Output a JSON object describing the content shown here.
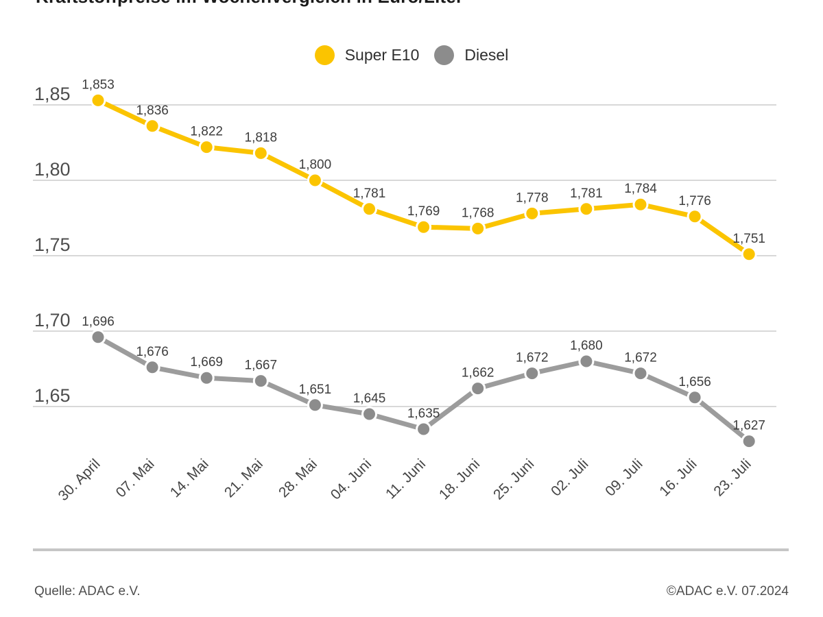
{
  "title": "Kraftstoffpreise im Wochenvergleich in Euro/Liter",
  "footer": {
    "source": "Quelle: ADAC e.V.",
    "copyright": "©ADAC e.V. 07.2024"
  },
  "chart_data": {
    "type": "line",
    "title": "Kraftstoffpreise im Wochenvergleich in Euro/Liter",
    "unit": "Euro/Liter",
    "categories": [
      "30. April",
      "07. Mai",
      "14. Mai",
      "21. Mai",
      "28. Mai",
      "04. Juni",
      "11. Juni",
      "18. Juni",
      "25. Juni",
      "02. Juli",
      "09. Juli",
      "16. Juli",
      "23. Juli"
    ],
    "series": [
      {
        "name": "Super E10",
        "line_color": "#FBC400",
        "dot_color": "#FBC400",
        "values": [
          1.853,
          1.836,
          1.822,
          1.818,
          1.8,
          1.781,
          1.769,
          1.768,
          1.778,
          1.781,
          1.784,
          1.776,
          1.751
        ],
        "labels": [
          "1,853",
          "1,836",
          "1,822",
          "1,818",
          "1,800",
          "1,781",
          "1,769",
          "1,768",
          "1,778",
          "1,781",
          "1,784",
          "1,776",
          "1,751"
        ]
      },
      {
        "name": "Diesel",
        "line_color": "#9C9C9C",
        "dot_color": "#8C8C8C",
        "values": [
          1.696,
          1.676,
          1.669,
          1.667,
          1.651,
          1.645,
          1.635,
          1.662,
          1.672,
          1.68,
          1.672,
          1.656,
          1.627
        ],
        "labels": [
          "1,696",
          "1,676",
          "1,669",
          "1,667",
          "1,651",
          "1,645",
          "1,635",
          "1,662",
          "1,672",
          "1,680",
          "1,672",
          "1,656",
          "1,627"
        ]
      }
    ],
    "yticks": [
      {
        "value": 1.85,
        "label": "1,85"
      },
      {
        "value": 1.8,
        "label": "1,80"
      },
      {
        "value": 1.75,
        "label": "1,75"
      },
      {
        "value": 1.7,
        "label": "1,70"
      },
      {
        "value": 1.65,
        "label": "1,65"
      }
    ],
    "ylim": [
      1.62,
      1.86
    ],
    "grid": true,
    "legend_position": "top",
    "colors": {
      "grid_line": "#CCCCCC",
      "baseline": "#C6C6C6",
      "tick_text": "#4d4d4d",
      "data_label_text": "#3d3d3d"
    }
  }
}
